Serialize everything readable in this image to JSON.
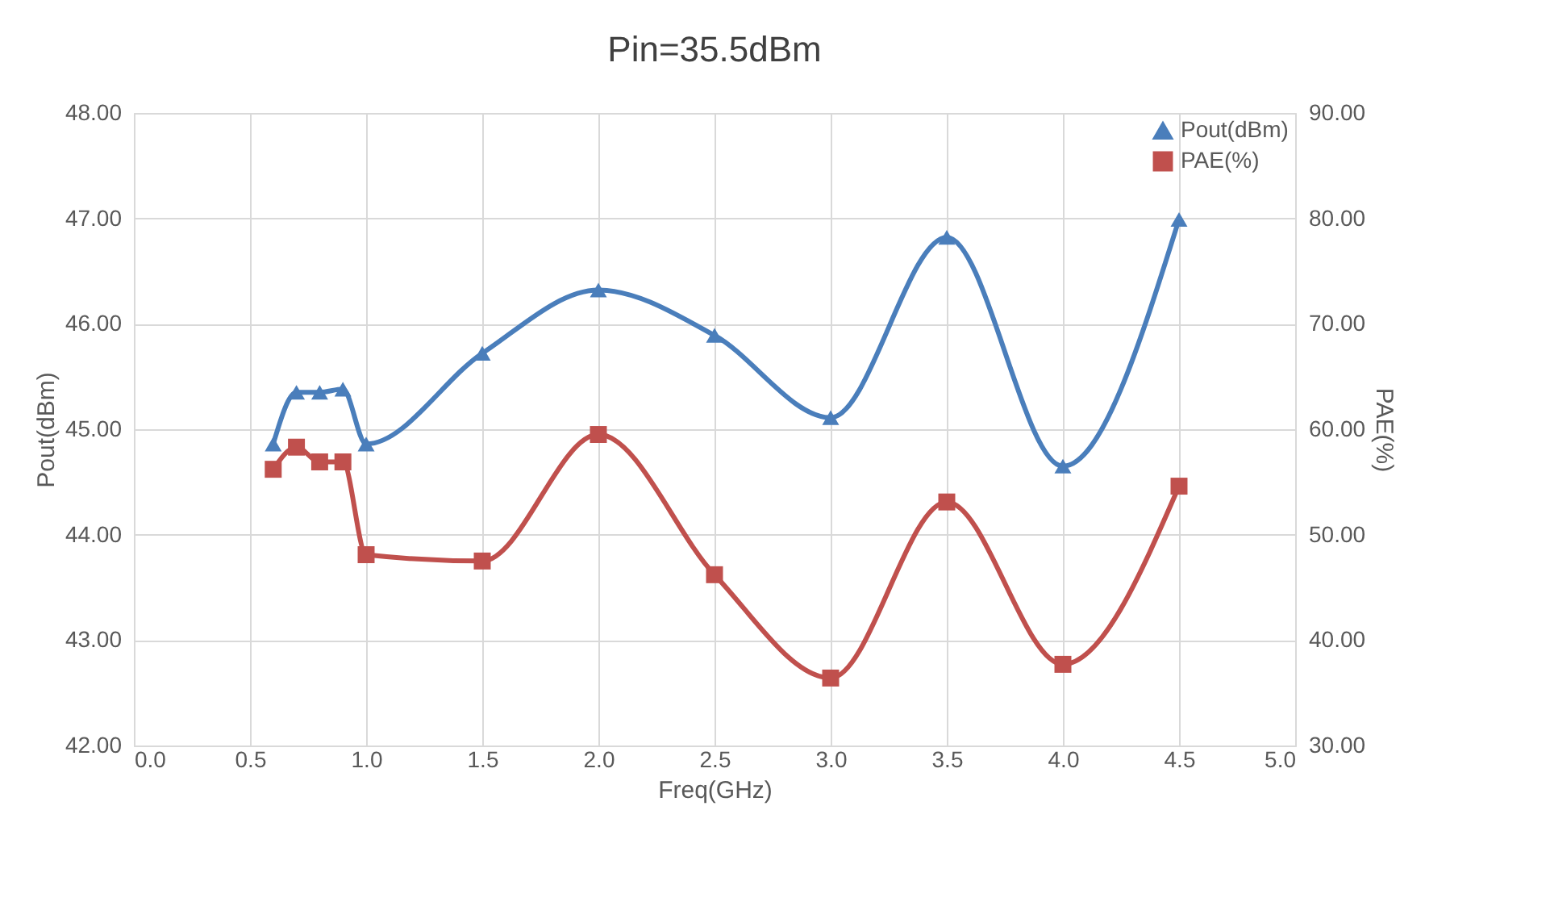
{
  "chart_data": {
    "type": "line",
    "title": "Pin=35.5dBm",
    "xlabel": "Freq(GHz)",
    "ylabel": "Pout(dBm)",
    "y2label": "PAE(%)",
    "x": [
      0.6,
      0.7,
      0.8,
      0.9,
      1.0,
      1.5,
      2.0,
      2.5,
      3.0,
      3.5,
      4.0,
      4.5
    ],
    "series": [
      {
        "name": "Pout(dBm)",
        "color": "#4a7ebb",
        "marker": "triangle",
        "values": [
          44.86,
          45.35,
          45.35,
          45.38,
          44.86,
          45.72,
          46.32,
          45.89,
          45.11,
          46.82,
          44.65,
          46.99
        ]
      },
      {
        "name": "PAE(%)",
        "color": "#c0504d",
        "marker": "square",
        "axis": "y2",
        "values": [
          56.2,
          58.3,
          56.9,
          56.9,
          48.1,
          47.5,
          59.5,
          46.2,
          36.4,
          53.1,
          37.7,
          54.6
        ]
      }
    ],
    "xlim": [
      0,
      5
    ],
    "xticks": [
      {
        "value": 0,
        "label": "0.0"
      },
      {
        "value": 0.5,
        "label": "0.5"
      },
      {
        "value": 1,
        "label": "1.0"
      },
      {
        "value": 1.5,
        "label": "1.5"
      },
      {
        "value": 2,
        "label": "2.0"
      },
      {
        "value": 2.5,
        "label": "2.5"
      },
      {
        "value": 3,
        "label": "3.0"
      },
      {
        "value": 3.5,
        "label": "3.5"
      },
      {
        "value": 4,
        "label": "4.0"
      },
      {
        "value": 4.5,
        "label": "4.5"
      },
      {
        "value": 5,
        "label": "5.0"
      }
    ],
    "ylim": [
      42,
      48
    ],
    "yticks": [
      {
        "value": 42,
        "label": "42.00"
      },
      {
        "value": 43,
        "label": "43.00"
      },
      {
        "value": 44,
        "label": "44.00"
      },
      {
        "value": 45,
        "label": "45.00"
      },
      {
        "value": 46,
        "label": "46.00"
      },
      {
        "value": 47,
        "label": "47.00"
      },
      {
        "value": 48,
        "label": "48.00"
      }
    ],
    "y2lim": [
      30,
      90
    ],
    "y2ticks": [
      {
        "value": 30,
        "label": "30.00"
      },
      {
        "value": 40,
        "label": "40.00"
      },
      {
        "value": 50,
        "label": "50.00"
      },
      {
        "value": 60,
        "label": "60.00"
      },
      {
        "value": 70,
        "label": "70.00"
      },
      {
        "value": 80,
        "label": "80.00"
      },
      {
        "value": 90,
        "label": "90.00"
      }
    ],
    "grid": true,
    "legend": "top right",
    "line_style": "solid"
  }
}
